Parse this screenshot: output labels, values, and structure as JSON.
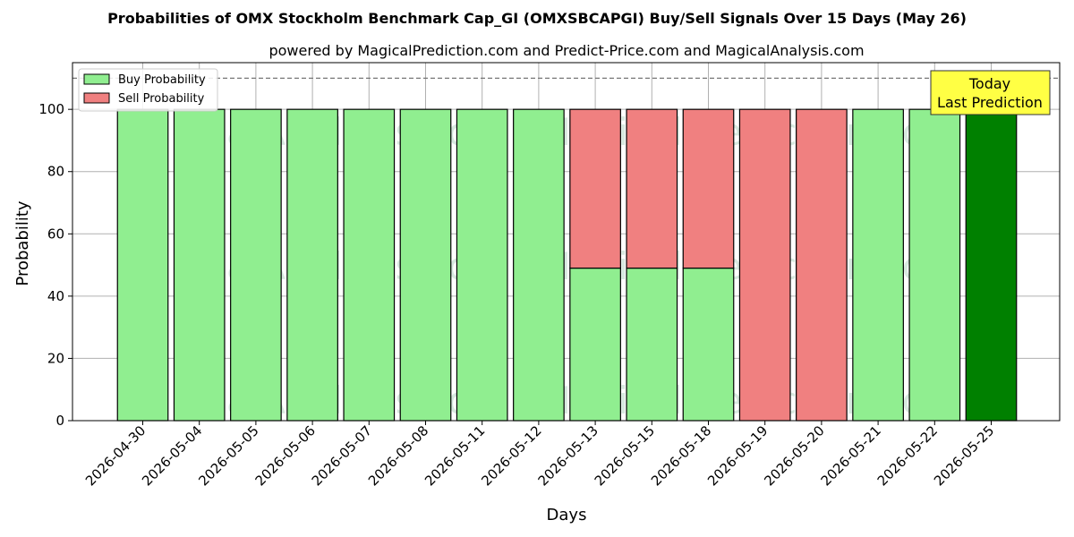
{
  "chart_data": {
    "type": "bar",
    "title": "Probabilities of OMX Stockholm Benchmark Cap_GI (OMXSBCAPGI) Buy/Sell Signals Over 15 Days (May 26)",
    "subtitle": "powered by MagicalPrediction.com and Predict-Price.com and MagicalAnalysis.com",
    "xlabel": "Days",
    "ylabel": "Probability",
    "ylim": [
      0,
      115
    ],
    "yticks": [
      0,
      20,
      40,
      60,
      80,
      100
    ],
    "grid": true,
    "legend_position": "top-left",
    "reference_line": 110,
    "categories": [
      "2026-04-30",
      "2026-05-04",
      "2026-05-05",
      "2026-05-06",
      "2026-05-07",
      "2026-05-08",
      "2026-05-11",
      "2026-05-12",
      "2026-05-13",
      "2026-05-15",
      "2026-05-18",
      "2026-05-19",
      "2026-05-20",
      "2026-05-21",
      "2026-05-22",
      "2026-05-25"
    ],
    "series": [
      {
        "name": "Buy Probability",
        "color": "#90ee90",
        "values": [
          100,
          100,
          100,
          100,
          100,
          100,
          100,
          100,
          49,
          49,
          49,
          0,
          0,
          100,
          100,
          100
        ]
      },
      {
        "name": "Sell Probability",
        "color": "#f08080",
        "values": [
          0,
          0,
          0,
          0,
          0,
          0,
          0,
          0,
          51,
          51,
          51,
          100,
          100,
          0,
          0,
          0
        ]
      }
    ],
    "highlight": {
      "category": "2026-05-25",
      "color": "#008000"
    },
    "annotation": {
      "lines": [
        "Today",
        "Last Prediction"
      ],
      "background": "#ffff44"
    },
    "watermarks": [
      "MagicalAnalysis.com",
      "MagicalPrediction.com"
    ]
  }
}
